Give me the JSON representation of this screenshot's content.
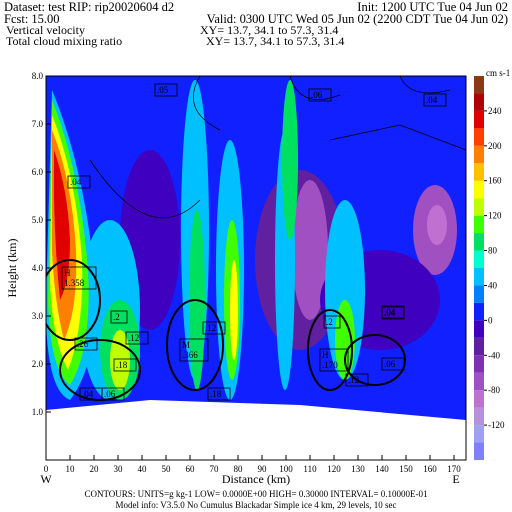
{
  "header": {
    "dataset": "Dataset: test   RIP: rip20020604  d2",
    "init": "Init: 1200 UTC Tue 04 Jun 02",
    "fcst": "Fcst:     15.00",
    "valid": "Valid: 0300 UTC Wed 05 Jun 02  (2200 CDT Tue 04 Jun 02)",
    "field1": "Vertical velocity",
    "xy1": "XY=   13.7, 34.1  to   57.3, 31.4",
    "field2": "Total cloud mixing ratio",
    "xy2": "XY=   13.7, 34.1  to   57.3, 31.4"
  },
  "chart_data": {
    "type": "contour",
    "xlabel": "Distance  (km)",
    "ylabel": "Height  (km)",
    "xlim": [
      0,
      175
    ],
    "xticks": [
      0,
      10,
      20,
      30,
      40,
      50,
      60,
      70,
      80,
      90,
      100,
      110,
      120,
      130,
      140,
      150,
      160,
      170
    ],
    "ylim": [
      0,
      8
    ],
    "yticks": [
      {
        "value": 1,
        "label": "1.0"
      },
      {
        "value": 2,
        "label": "2.0"
      },
      {
        "value": 3,
        "label": "3.0"
      },
      {
        "value": 4,
        "label": "4.0"
      },
      {
        "value": 5,
        "label": "5.0"
      },
      {
        "value": 6,
        "label": "6.0"
      },
      {
        "value": 7,
        "label": "7.0"
      },
      {
        "value": 8,
        "label": "8.0"
      }
    ],
    "left_end": "W",
    "right_end": "E",
    "colorbar": {
      "unit": "cm s-1",
      "lim": [
        -160,
        280
      ],
      "levels": [
        -160,
        -140,
        -120,
        -100,
        -80,
        -60,
        -40,
        -20,
        0,
        20,
        40,
        60,
        80,
        100,
        120,
        140,
        160,
        180,
        200,
        220,
        240,
        260,
        280
      ],
      "colors": [
        "#8080ff",
        "#a0a0f0",
        "#b890e0",
        "#c070d0",
        "#a050c0",
        "#8030b0",
        "#6020a0",
        "#4000c0",
        "#1020ff",
        "#0080ff",
        "#00c0ff",
        "#00ffd0",
        "#00e060",
        "#40ff00",
        "#c0ff00",
        "#ffff00",
        "#ffc000",
        "#ff8000",
        "#ff4000",
        "#e00000",
        "#b00000",
        "#8a3a10",
        "#704018"
      ],
      "ticks": [
        240,
        200,
        160,
        120,
        80,
        40,
        0,
        -40,
        -80,
        -120
      ]
    },
    "annotations": [
      ".05",
      ".06",
      ".04",
      ".04",
      ".04",
      "H\n1.358",
      ".2",
      ".26",
      ".12",
      ".18",
      ".04",
      ".06",
      "M\n.366",
      ".12",
      ".18",
      ".2",
      "H\n.170",
      ".04",
      ".06",
      ".12"
    ]
  },
  "footer": {
    "line1": "CONTOURS:  UNITS=g kg-1   LOW= 0.0000E+00  HIGH= 0.30000      INTERVAL=   0.10000E-01",
    "line2": "Model info: V3.5.0 No Cumulus Blackadar  Simple ice     4 km,   29 levels,   10 sec"
  }
}
